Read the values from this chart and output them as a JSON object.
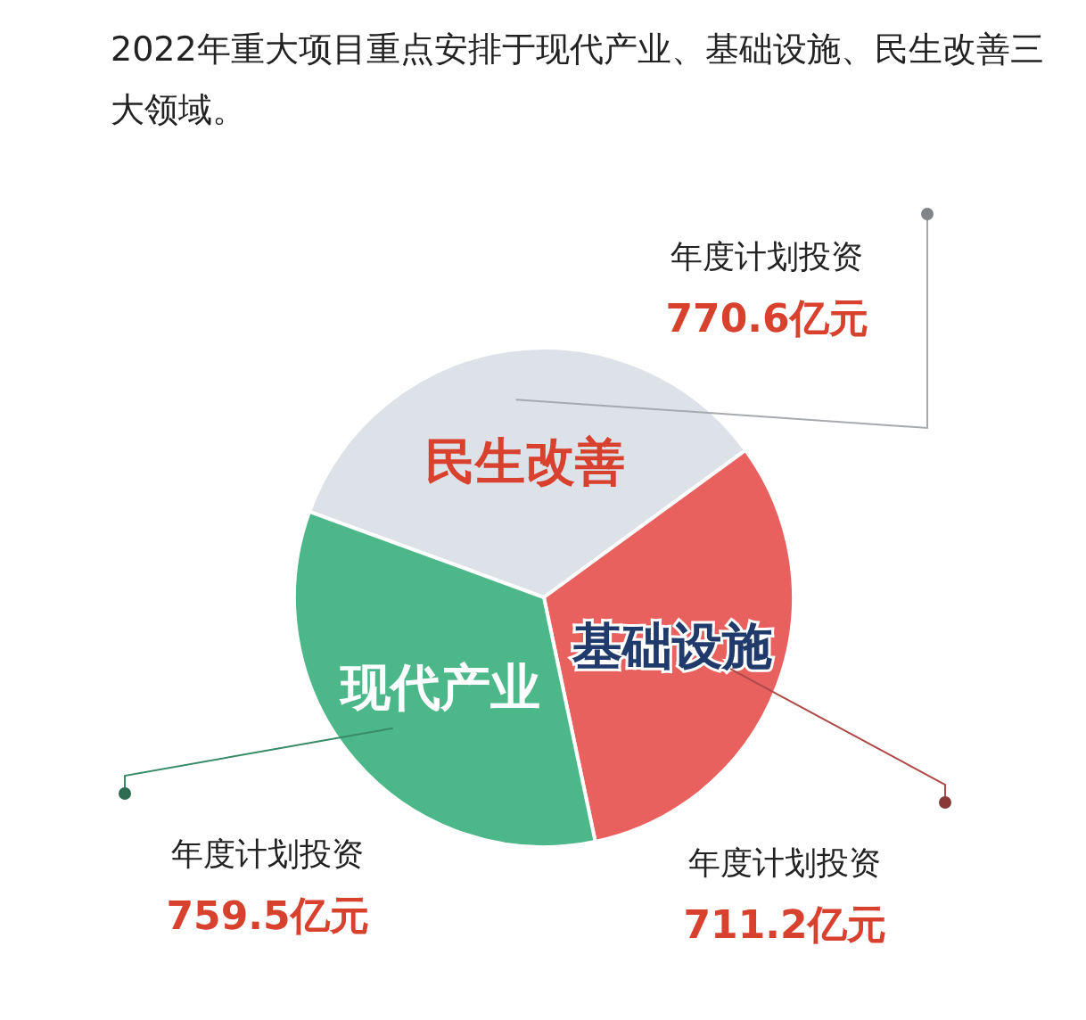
{
  "chart_data": {
    "type": "pie",
    "title": "2022年重大项目重点安排于现代产业、基础设施、民生改善三大领域。",
    "categories": [
      "民生改善",
      "基础设施",
      "现代产业"
    ],
    "values": [
      770.6,
      711.2,
      759.5
    ],
    "colors": [
      "#dde1e8",
      "#e8615f",
      "#4cb889"
    ],
    "value_labels": [
      "年度计划投资\n770.6亿元",
      "年度计划投资\n711.2亿元",
      "年度计划投资\n759.5亿元"
    ]
  }
}
